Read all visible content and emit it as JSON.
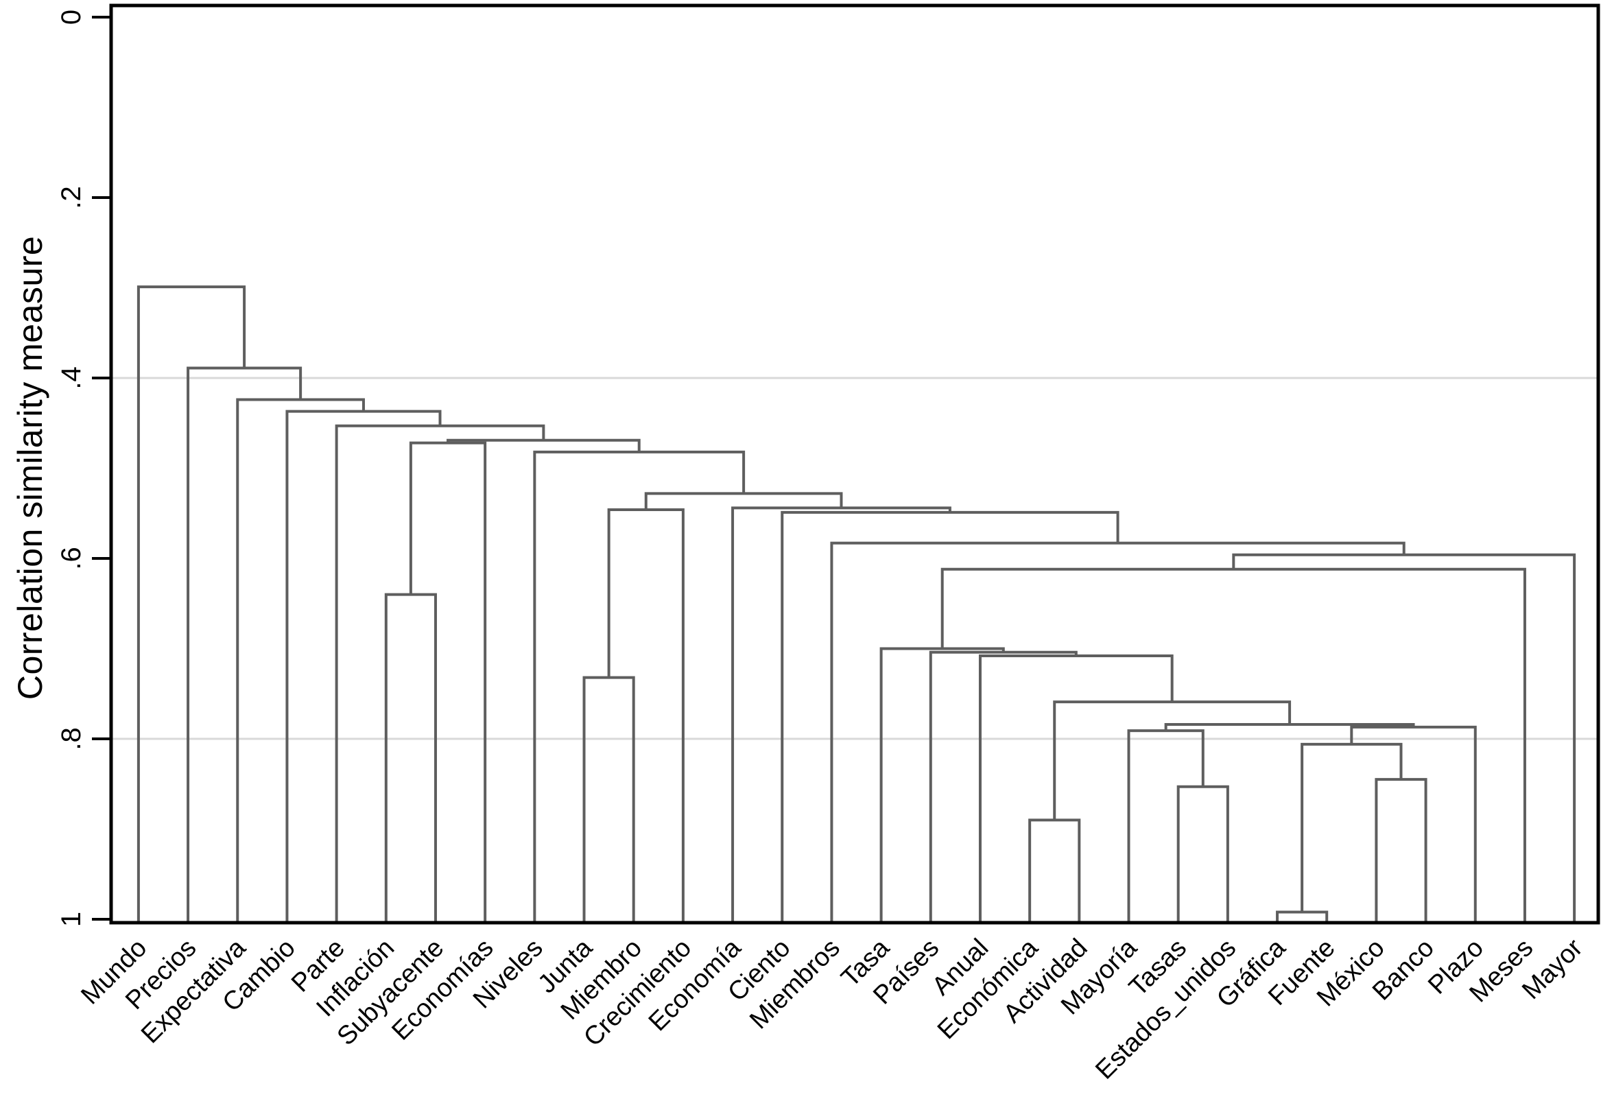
{
  "figure": {
    "ylabel": "Correlation similarity measure"
  },
  "chart_data": {
    "type": "dendrogram",
    "orientation": "vertical",
    "title": "",
    "xlabel": "",
    "ylabel": "Correlation similarity measure",
    "ylim": [
      0,
      1
    ],
    "y_axis_inverted": true,
    "grid": "partial",
    "gridlines": [
      0.4,
      0.8
    ],
    "yticks": [
      0,
      0.2,
      0.4,
      0.6,
      0.8,
      1
    ],
    "ytick_labels": [
      "0",
      ".2",
      ".4",
      ".6",
      ".8",
      "1"
    ],
    "leaves": [
      "Mundo",
      "Precios",
      "Expectativa",
      "Cambio",
      "Parte",
      "Inflación",
      "Subyacente",
      "Economías",
      "Niveles",
      "Junta",
      "Miembro",
      "Crecimiento",
      "Economía",
      "Ciento",
      "Miembros",
      "Tasa",
      "Países",
      "Anual",
      "Económica",
      "Actividad",
      "Mayoría",
      "Tasas",
      "Estados_unidos",
      "Gráfica",
      "Fuente",
      "México",
      "Banco",
      "Plazo",
      "Meses",
      "Mayor"
    ],
    "merge_node_note": "nodes 0-29 are leaves in order; merge i creates node 30+i; a/b are child node ids; h is the correlation similarity at which the two children join",
    "merges": [
      {
        "a": 5,
        "b": 6,
        "h": 0.64
      },
      {
        "a": 30,
        "b": 7,
        "h": 0.472
      },
      {
        "a": 9,
        "b": 10,
        "h": 0.732
      },
      {
        "a": 32,
        "b": 11,
        "h": 0.546
      },
      {
        "a": 23,
        "b": 24,
        "h": 0.992
      },
      {
        "a": 25,
        "b": 26,
        "h": 0.845
      },
      {
        "a": 34,
        "b": 35,
        "h": 0.806
      },
      {
        "a": 36,
        "b": 27,
        "h": 0.787
      },
      {
        "a": 21,
        "b": 22,
        "h": 0.853
      },
      {
        "a": 20,
        "b": 38,
        "h": 0.791
      },
      {
        "a": 39,
        "b": 37,
        "h": 0.784
      },
      {
        "a": 18,
        "b": 19,
        "h": 0.89
      },
      {
        "a": 41,
        "b": 40,
        "h": 0.759
      },
      {
        "a": 17,
        "b": 42,
        "h": 0.708
      },
      {
        "a": 16,
        "b": 43,
        "h": 0.704
      },
      {
        "a": 15,
        "b": 44,
        "h": 0.7
      },
      {
        "a": 45,
        "b": 28,
        "h": 0.612
      },
      {
        "a": 46,
        "b": 29,
        "h": 0.596
      },
      {
        "a": 14,
        "b": 47,
        "h": 0.583
      },
      {
        "a": 13,
        "b": 48,
        "h": 0.549
      },
      {
        "a": 12,
        "b": 49,
        "h": 0.544
      },
      {
        "a": 33,
        "b": 50,
        "h": 0.528
      },
      {
        "a": 8,
        "b": 51,
        "h": 0.482
      },
      {
        "a": 31,
        "b": 52,
        "h": 0.469
      },
      {
        "a": 4,
        "b": 53,
        "h": 0.453
      },
      {
        "a": 3,
        "b": 54,
        "h": 0.437
      },
      {
        "a": 2,
        "b": 55,
        "h": 0.424
      },
      {
        "a": 1,
        "b": 56,
        "h": 0.389
      },
      {
        "a": 0,
        "b": 57,
        "h": 0.299
      }
    ]
  },
  "style": {
    "line_color": "#5e5e5e",
    "axis_color": "#000000",
    "grid_color": "#d9d9d9",
    "label_color": "#000000"
  }
}
